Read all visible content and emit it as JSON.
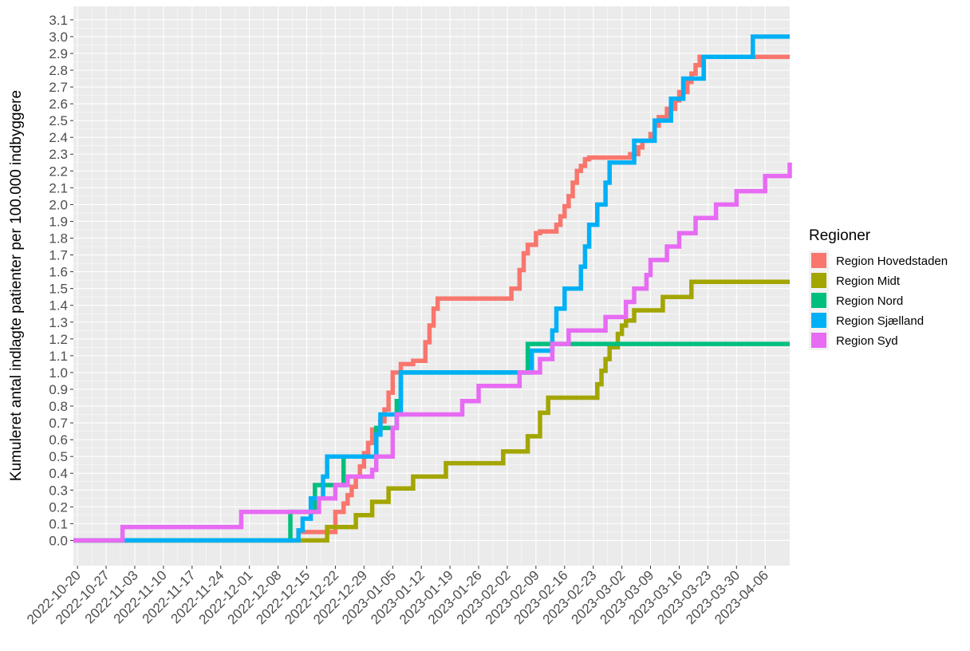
{
  "chart_data": {
    "type": "line",
    "step": true,
    "title": "",
    "xlabel": "",
    "ylabel": "Kumuleret antal indlagte patienter per 100.000 indbyggere",
    "x_tick_labels": [
      "2022-10-20",
      "2022-10-27",
      "2022-11-03",
      "2022-11-10",
      "2022-11-17",
      "2022-11-24",
      "2022-12-01",
      "2022-12-08",
      "2022-12-15",
      "2022-12-22",
      "2022-12-29",
      "2023-01-05",
      "2023-01-12",
      "2023-01-19",
      "2023-01-26",
      "2023-02-02",
      "2023-02-09",
      "2023-02-16",
      "2023-02-23",
      "2023-03-02",
      "2023-03-09",
      "2023-03-16",
      "2023-03-23",
      "2023-03-30",
      "2023-04-06"
    ],
    "y_tick_labels": [
      "0.0",
      "0.1",
      "0.2",
      "0.3",
      "0.4",
      "0.5",
      "0.6",
      "0.7",
      "0.8",
      "0.9",
      "1.0",
      "1.1",
      "1.2",
      "1.3",
      "1.4",
      "1.5",
      "1.6",
      "1.7",
      "1.8",
      "1.9",
      "2.0",
      "2.1",
      "2.2",
      "2.3",
      "2.4",
      "2.5",
      "2.6",
      "2.7",
      "2.8",
      "2.9",
      "3.0",
      "3.1"
    ],
    "xlim": [
      "2022-10-19",
      "2023-04-12"
    ],
    "ylim": [
      -0.15,
      3.18
    ],
    "grid": true,
    "legend": {
      "title": "Regioner",
      "position": "right",
      "labels": [
        "Region Hovedstaden",
        "Region Midt",
        "Region Nord",
        "Region Sjælland",
        "Region Syd"
      ]
    },
    "series": [
      {
        "name": "Region Hovedstaden",
        "color": "#F8766D",
        "x": [
          "2022-10-17",
          "2022-12-13",
          "2022-12-22",
          "2022-12-24",
          "2022-12-25",
          "2022-12-26",
          "2022-12-27",
          "2022-12-28",
          "2022-12-29",
          "2022-12-30",
          "2022-12-31",
          "2023-01-02",
          "2023-01-03",
          "2023-01-04",
          "2023-01-05",
          "2023-01-06",
          "2023-01-07",
          "2023-01-10",
          "2023-01-13",
          "2023-01-14",
          "2023-01-15",
          "2023-01-16",
          "2023-02-03",
          "2023-02-05",
          "2023-02-06",
          "2023-02-07",
          "2023-02-09",
          "2023-02-10",
          "2023-02-14",
          "2023-02-15",
          "2023-02-16",
          "2023-02-17",
          "2023-02-18",
          "2023-02-19",
          "2023-02-20",
          "2023-02-21",
          "2023-02-22",
          "2023-03-04",
          "2023-03-06",
          "2023-03-07",
          "2023-03-09",
          "2023-03-10",
          "2023-03-11",
          "2023-03-13",
          "2023-03-15",
          "2023-03-16",
          "2023-03-18",
          "2023-03-19",
          "2023-03-20",
          "2023-03-21",
          "2023-04-12"
        ],
        "y": [
          0.0,
          0.05,
          0.17,
          0.22,
          0.27,
          0.32,
          0.38,
          0.44,
          0.52,
          0.58,
          0.66,
          0.71,
          0.78,
          0.88,
          1.0,
          1.0,
          1.05,
          1.07,
          1.18,
          1.28,
          1.38,
          1.44,
          1.5,
          1.61,
          1.71,
          1.76,
          1.83,
          1.84,
          1.88,
          1.93,
          1.99,
          2.05,
          2.13,
          2.2,
          2.23,
          2.27,
          2.28,
          2.3,
          2.34,
          2.38,
          2.42,
          2.47,
          2.52,
          2.57,
          2.62,
          2.67,
          2.73,
          2.78,
          2.83,
          2.88,
          2.88
        ]
      },
      {
        "name": "Region Midt",
        "color": "#A3A500",
        "x": [
          "2022-10-17",
          "2022-12-20",
          "2022-12-27",
          "2022-12-31",
          "2023-01-04",
          "2023-01-10",
          "2023-01-18",
          "2023-02-01",
          "2023-02-07",
          "2023-02-10",
          "2023-02-12",
          "2023-02-17",
          "2023-02-24",
          "2023-02-25",
          "2023-02-26",
          "2023-02-27",
          "2023-03-01",
          "2023-03-02",
          "2023-03-03",
          "2023-03-05",
          "2023-03-12",
          "2023-03-19",
          "2023-04-12"
        ],
        "y": [
          0.0,
          0.08,
          0.15,
          0.23,
          0.31,
          0.38,
          0.46,
          0.53,
          0.62,
          0.76,
          0.85,
          0.85,
          0.93,
          1.01,
          1.08,
          1.15,
          1.23,
          1.28,
          1.31,
          1.37,
          1.45,
          1.54,
          1.54
        ]
      },
      {
        "name": "Region Nord",
        "color": "#00BF7D",
        "x": [
          "2022-10-17",
          "2022-12-11",
          "2022-12-17",
          "2022-12-24",
          "2023-01-01",
          "2023-01-06",
          "2023-01-07",
          "2023-02-07",
          "2023-04-12"
        ],
        "y": [
          0.0,
          0.17,
          0.33,
          0.5,
          0.67,
          0.83,
          1.0,
          1.17,
          1.17
        ]
      },
      {
        "name": "Region Sjælland",
        "color": "#00B0F6",
        "x": [
          "2022-10-17",
          "2022-12-13",
          "2022-12-14",
          "2022-12-16",
          "2022-12-19",
          "2022-12-20",
          "2023-01-01",
          "2023-01-02",
          "2023-01-07",
          "2023-02-08",
          "2023-02-13",
          "2023-02-14",
          "2023-02-16",
          "2023-02-20",
          "2023-02-21",
          "2023-02-22",
          "2023-02-24",
          "2023-02-26",
          "2023-02-27",
          "2023-03-05",
          "2023-03-07",
          "2023-03-10",
          "2023-03-14",
          "2023-03-15",
          "2023-03-16",
          "2023-03-17",
          "2023-03-18",
          "2023-03-20",
          "2023-03-22",
          "2023-04-03",
          "2023-04-12"
        ],
        "y": [
          0.0,
          0.06,
          0.13,
          0.25,
          0.38,
          0.5,
          0.63,
          0.75,
          1.0,
          1.13,
          1.25,
          1.38,
          1.5,
          1.63,
          1.75,
          1.88,
          2.0,
          2.13,
          2.25,
          2.38,
          2.38,
          2.5,
          2.63,
          2.63,
          2.63,
          2.75,
          2.75,
          2.75,
          2.88,
          3.0,
          3.0
        ]
      },
      {
        "name": "Region Syd",
        "color": "#E76BF3",
        "x": [
          "2022-10-17",
          "2022-10-31",
          "2022-11-29",
          "2022-12-18",
          "2022-12-22",
          "2022-12-25",
          "2022-12-31",
          "2023-01-01",
          "2023-01-05",
          "2023-01-06",
          "2023-01-22",
          "2023-01-26",
          "2023-02-05",
          "2023-02-10",
          "2023-02-13",
          "2023-02-17",
          "2023-02-26",
          "2023-03-03",
          "2023-03-05",
          "2023-03-08",
          "2023-03-09",
          "2023-03-13",
          "2023-03-16",
          "2023-03-20",
          "2023-03-25",
          "2023-03-30",
          "2023-04-06",
          "2023-04-12"
        ],
        "y": [
          0.0,
          0.08,
          0.17,
          0.25,
          0.33,
          0.38,
          0.42,
          0.5,
          0.67,
          0.75,
          0.83,
          0.92,
          1.0,
          1.08,
          1.17,
          1.25,
          1.33,
          1.42,
          1.5,
          1.58,
          1.67,
          1.75,
          1.83,
          1.92,
          2.0,
          2.08,
          2.17,
          2.25
        ]
      }
    ]
  }
}
